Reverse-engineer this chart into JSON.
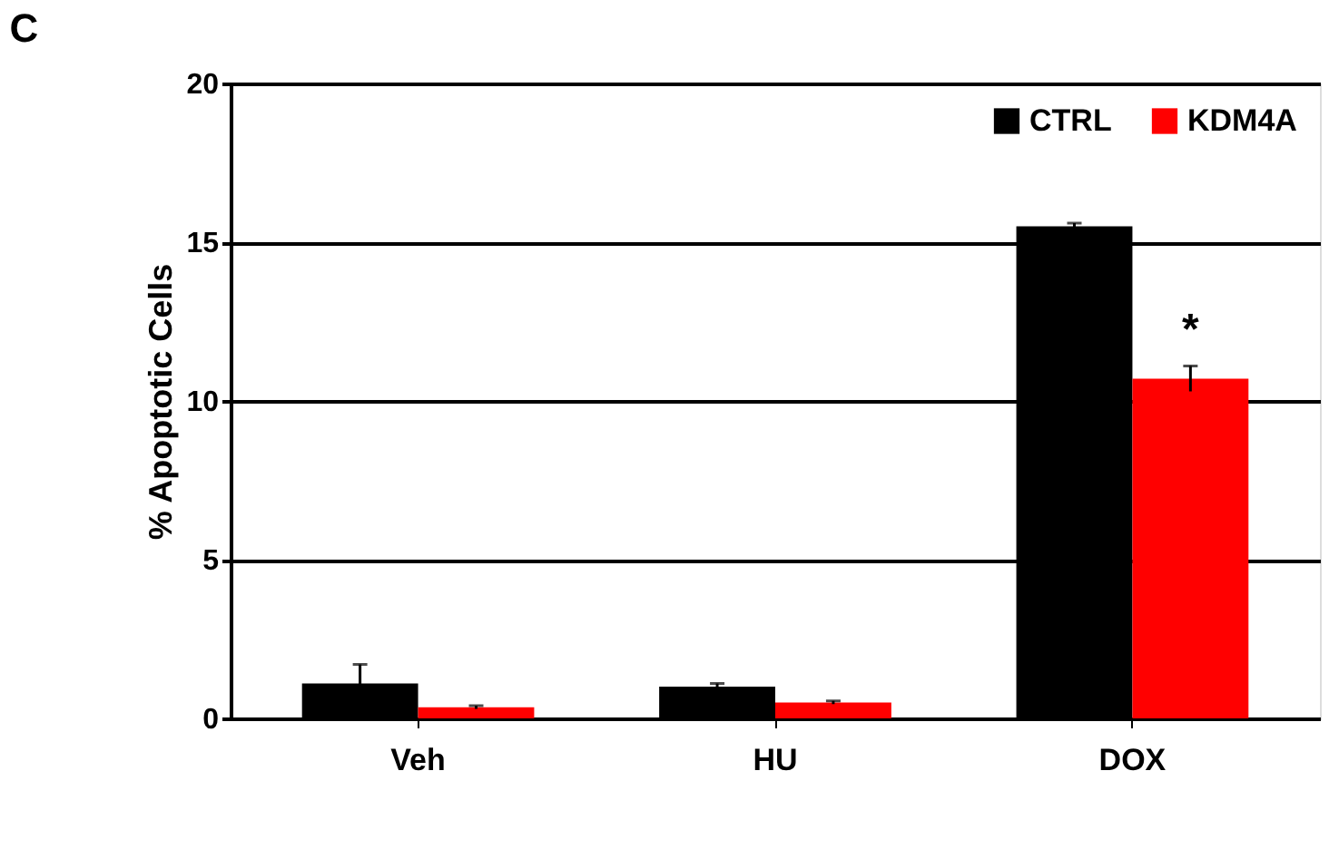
{
  "chart_data": {
    "type": "bar",
    "title": "C",
    "ylabel": "% Apoptotic Cells",
    "categories": [
      "Veh",
      "HU",
      "DOX"
    ],
    "series": [
      {
        "name": "CTRL",
        "color": "#000000",
        "values": [
          1.1,
          1.0,
          15.5
        ],
        "errors": [
          0.6,
          0.1,
          0.1
        ]
      },
      {
        "name": "KDM4A",
        "color": "#ff0000",
        "values": [
          0.35,
          0.5,
          10.7
        ],
        "errors": [
          0.05,
          0.05,
          0.4
        ]
      }
    ],
    "ylim": [
      0,
      20
    ],
    "yticks": [
      0,
      5,
      10,
      15,
      20
    ],
    "grid": "y",
    "legend": "top right",
    "annotations": [
      {
        "text": "*",
        "x": "DOX",
        "y": 12.2
      }
    ]
  }
}
